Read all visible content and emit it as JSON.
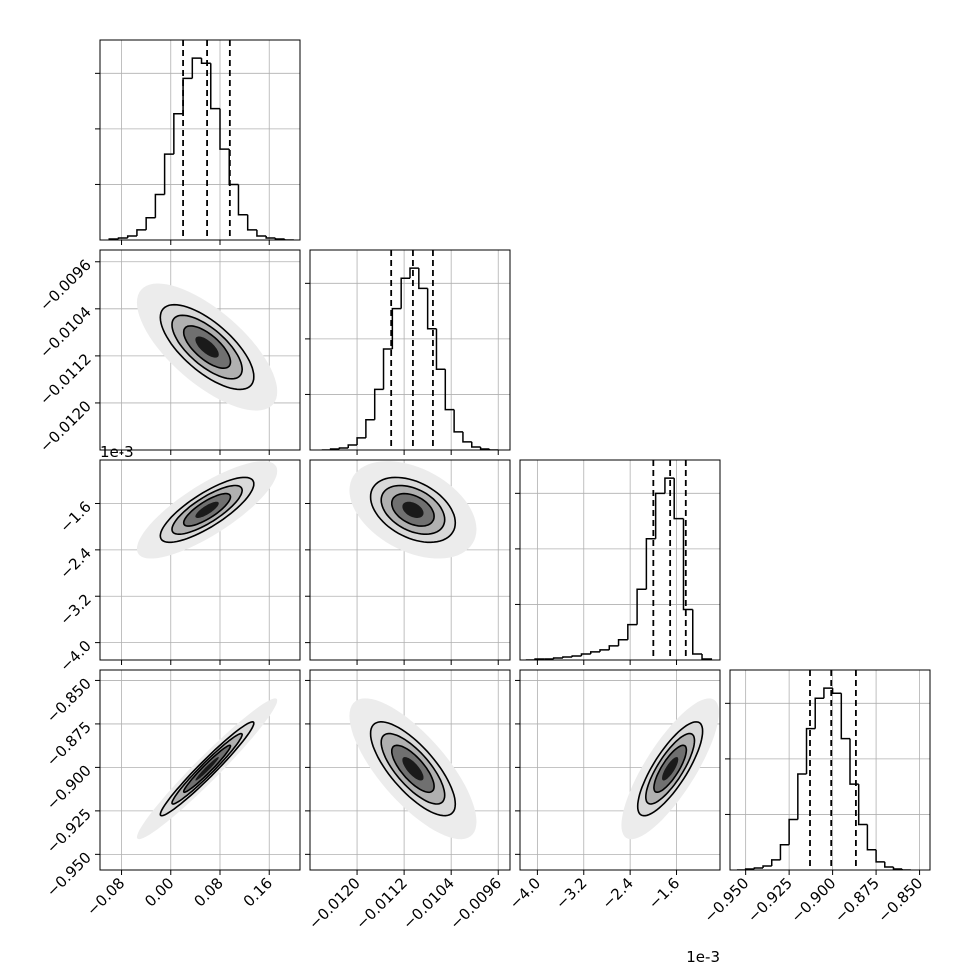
{
  "chart_data": {
    "type": "corner",
    "grid": true,
    "hist_ylim": [
      0,
      198
    ],
    "hist_yticks": [
      55,
      110,
      165
    ],
    "shade_levels": [
      3,
      2,
      1.5,
      1,
      0.5
    ],
    "shade_colors": [
      "#ececec",
      "#d9d9d9",
      "#b0b0b0",
      "#707070",
      "#1a1a1a"
    ],
    "contour_levels": [
      1,
      1.5,
      2
    ],
    "params": [
      {
        "lim": [
          -0.115,
          0.21
        ],
        "ticks": [
          {
            "value": -0.08,
            "label": "−0.08"
          },
          {
            "value": 0,
            "label": "0.00"
          },
          {
            "value": 0.08,
            "label": "0.08"
          },
          {
            "value": 0.16,
            "label": "0.16"
          }
        ],
        "mean": 0.059,
        "sd": 0.038,
        "quantiles": [
          0.02,
          0.059,
          0.096
        ],
        "bins": [
          -0.1,
          -0.085,
          -0.07,
          -0.055,
          -0.04,
          -0.025,
          -0.01,
          0.005,
          0.02,
          0.035,
          0.05,
          0.065,
          0.08,
          0.095,
          0.11,
          0.125,
          0.14,
          0.155,
          0.17,
          0.185,
          0.2
        ],
        "counts": [
          1,
          2,
          4,
          10,
          22,
          45,
          85,
          125,
          160,
          180,
          175,
          130,
          90,
          55,
          25,
          10,
          4,
          2,
          1,
          0
        ]
      },
      {
        "lim": [
          -0.0128,
          -0.0094
        ],
        "ticks": [
          {
            "value": -0.012,
            "label": "−0.0120"
          },
          {
            "value": -0.0112,
            "label": "−0.0112"
          },
          {
            "value": -0.0104,
            "label": "−0.0104"
          },
          {
            "value": -0.0096,
            "label": "−0.0096"
          }
        ],
        "mean": -0.01105,
        "sd": 0.00036,
        "quantiles": [
          -0.01142,
          -0.01105,
          -0.01071
        ],
        "bins": [
          -0.0126,
          -0.01245,
          -0.0123,
          -0.01215,
          -0.012,
          -0.01185,
          -0.0117,
          -0.01155,
          -0.0114,
          -0.01125,
          -0.0111,
          -0.01095,
          -0.0108,
          -0.01065,
          -0.0105,
          -0.01035,
          -0.0102,
          -0.01005,
          -0.0099,
          -0.00975,
          -0.0096
        ],
        "counts": [
          0,
          1,
          2,
          5,
          12,
          30,
          60,
          100,
          140,
          170,
          180,
          160,
          120,
          80,
          40,
          18,
          8,
          3,
          1,
          0
        ]
      },
      {
        "lim": [
          -4.3,
          -0.85
        ],
        "offset_label": "1e-3",
        "ticks": [
          {
            "value": -4,
            "label": "−4.0"
          },
          {
            "value": -3.2,
            "label": "−3.2"
          },
          {
            "value": -2.4,
            "label": "−2.4"
          },
          {
            "value": -1.6,
            "label": "−1.6"
          }
        ],
        "mean": -1.71,
        "sd": 0.28,
        "quantiles": [
          -2.0,
          -1.71,
          -1.44
        ],
        "bins": [
          -4.2,
          -4.04,
          -3.88,
          -3.72,
          -3.56,
          -3.4,
          -3.24,
          -3.08,
          -2.92,
          -2.76,
          -2.6,
          -2.44,
          -2.28,
          -2.12,
          -1.96,
          -1.8,
          -1.64,
          -1.48,
          -1.32,
          -1.16,
          -1.0
        ],
        "counts": [
          0,
          1,
          1,
          2,
          3,
          4,
          6,
          8,
          10,
          14,
          20,
          35,
          70,
          120,
          165,
          180,
          140,
          50,
          6,
          1
        ]
      },
      {
        "lim": [
          -0.959,
          -0.844
        ],
        "ticks": [
          {
            "value": -0.95,
            "label": "−0.950"
          },
          {
            "value": -0.925,
            "label": "−0.925"
          },
          {
            "value": -0.9,
            "label": "−0.900"
          },
          {
            "value": -0.875,
            "label": "−0.875"
          },
          {
            "value": -0.85,
            "label": "−0.850"
          }
        ],
        "mean": -0.9008,
        "sd": 0.0135,
        "quantiles": [
          -0.913,
          -0.9008,
          -0.8866
        ],
        "bins": [
          -0.955,
          -0.95,
          -0.945,
          -0.94,
          -0.935,
          -0.93,
          -0.925,
          -0.92,
          -0.915,
          -0.91,
          -0.905,
          -0.9,
          -0.895,
          -0.89,
          -0.885,
          -0.88,
          -0.875,
          -0.87,
          -0.865,
          -0.86,
          -0.855
        ],
        "counts": [
          0,
          1,
          2,
          4,
          10,
          25,
          50,
          95,
          140,
          170,
          180,
          175,
          130,
          85,
          45,
          20,
          8,
          3,
          1,
          0
        ]
      }
    ],
    "pairs": [
      {
        "x": 0,
        "y": 1,
        "corr": -0.7
      },
      {
        "x": 0,
        "y": 2,
        "corr": 0.8
      },
      {
        "x": 1,
        "y": 2,
        "corr": -0.4
      },
      {
        "x": 0,
        "y": 3,
        "corr": 0.97
      },
      {
        "x": 1,
        "y": 3,
        "corr": -0.75
      },
      {
        "x": 2,
        "y": 3,
        "corr": 0.8
      }
    ]
  }
}
